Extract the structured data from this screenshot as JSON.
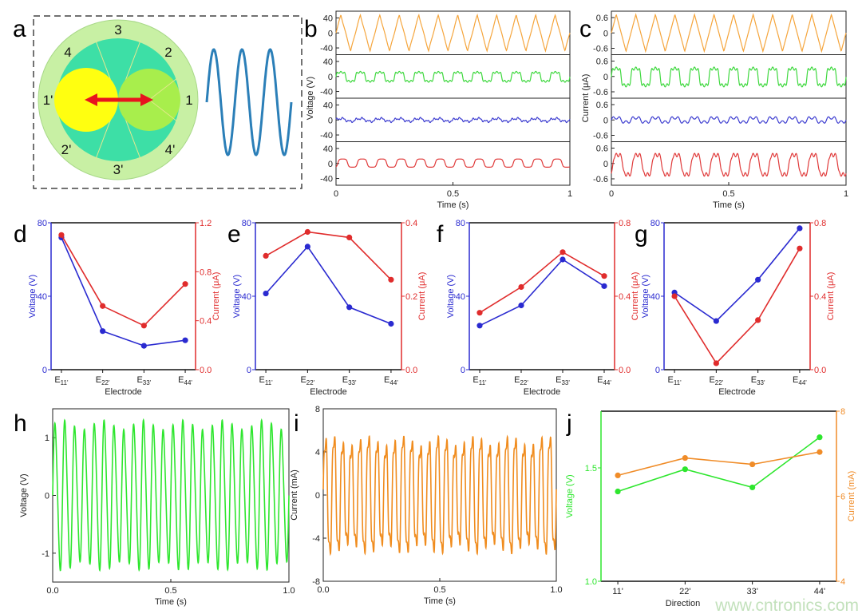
{
  "panel_letters": [
    "a",
    "b",
    "c",
    "d",
    "e",
    "f",
    "g",
    "h",
    "i",
    "j"
  ],
  "panel_a": {
    "electrode_labels": [
      "3",
      "2",
      "4",
      "1",
      "1'",
      "2'",
      "4'",
      "3'"
    ],
    "colors": {
      "outer_ring": "#c8f0a4",
      "inner_disc": "#3ddfa6",
      "left_magnet": "#ffff10",
      "right_magnet": "#a8ee4c",
      "arrow": "#e8141e",
      "waveform": "#2b7fb8"
    }
  },
  "watermark": "www.cntronics.com",
  "chart_data": [
    {
      "id": "b",
      "type": "line",
      "layout": "stacked-4",
      "xlabel": "Time (s)",
      "ylabel": "Voltage (V)",
      "xlim": [
        0,
        1
      ],
      "xtick_values": [
        0,
        0.5,
        1
      ],
      "xtick_labels": [
        "0",
        "0.5",
        "1"
      ],
      "ylim": [
        -58,
        58
      ],
      "ytick_values": [
        40,
        0,
        -40
      ],
      "ytick_labels": [
        "40",
        "0",
        "-40"
      ],
      "series": [
        {
          "color": "#f5a53c",
          "cycles": 12,
          "amplitude": 48
        },
        {
          "color": "#3ed83e",
          "cycles": 12,
          "amplitude": 13
        },
        {
          "color": "#3c3cd0",
          "cycles": 12,
          "amplitude": 6
        },
        {
          "color": "#e03a3a",
          "cycles": 12,
          "amplitude": 12
        }
      ]
    },
    {
      "id": "c",
      "type": "line",
      "layout": "stacked-4",
      "xlabel": "Time (s)",
      "ylabel": "Current (μA)",
      "xlim": [
        0,
        1
      ],
      "xtick_values": [
        0,
        0.5,
        1
      ],
      "xtick_labels": [
        "0",
        "0.5",
        "1"
      ],
      "ylim": [
        -0.85,
        0.85
      ],
      "ytick_values": [
        0.6,
        0,
        -0.6
      ],
      "ytick_labels": [
        "0.6",
        "0",
        "-0.6"
      ],
      "series": [
        {
          "color": "#f5a53c",
          "cycles": 12,
          "amplitude": 0.72
        },
        {
          "color": "#3ed83e",
          "cycles": 12,
          "amplitude": 0.35
        },
        {
          "color": "#3c3cd0",
          "cycles": 12,
          "amplitude": 0.2
        },
        {
          "color": "#e03a3a",
          "cycles": 12,
          "amplitude": 0.4
        }
      ]
    },
    {
      "id": "d",
      "type": "line",
      "xlabel": "Electrode",
      "categories": [
        {
          "base": "E",
          "sub": "11'"
        },
        {
          "base": "E",
          "sub": "22'"
        },
        {
          "base": "E",
          "sub": "33'"
        },
        {
          "base": "E",
          "sub": "44'"
        }
      ],
      "left": {
        "label": "Voltage (V)",
        "color": "#2a2ad0",
        "ylim": [
          0,
          80
        ],
        "tick_values": [
          0,
          40,
          80
        ],
        "tick_labels": [
          "0",
          "40",
          "80"
        ],
        "values": [
          72,
          21,
          13,
          16
        ]
      },
      "right": {
        "label": "Current (μA)",
        "color": "#e02c2c",
        "ylim": [
          0,
          1.2
        ],
        "tick_values": [
          0,
          0.4,
          0.8,
          1.2
        ],
        "tick_labels": [
          "0.0",
          "0.4",
          "0.8",
          "1.2"
        ],
        "values": [
          1.1,
          0.52,
          0.36,
          0.7
        ]
      }
    },
    {
      "id": "e",
      "type": "line",
      "xlabel": "Electrode",
      "categories": [
        {
          "base": "E",
          "sub": "11'"
        },
        {
          "base": "E",
          "sub": "22'"
        },
        {
          "base": "E",
          "sub": "33'"
        },
        {
          "base": "E",
          "sub": "44'"
        }
      ],
      "left": {
        "label": "Voltage (V)",
        "color": "#2a2ad0",
        "ylim": [
          0,
          80
        ],
        "tick_values": [
          0,
          40,
          80
        ],
        "tick_labels": [
          "0",
          "40",
          "80"
        ],
        "values": [
          41.5,
          67,
          34,
          25
        ]
      },
      "right": {
        "label": "Current (μA)",
        "color": "#e02c2c",
        "ylim": [
          0,
          0.4
        ],
        "tick_values": [
          0,
          0.2,
          0.4
        ],
        "tick_labels": [
          "0.0",
          "0.2",
          "0.4"
        ],
        "values": [
          0.31,
          0.375,
          0.36,
          0.245
        ]
      }
    },
    {
      "id": "f",
      "type": "line",
      "xlabel": "Electrode",
      "categories": [
        {
          "base": "E",
          "sub": "11'"
        },
        {
          "base": "E",
          "sub": "22'"
        },
        {
          "base": "E",
          "sub": "33'"
        },
        {
          "base": "E",
          "sub": "44'"
        }
      ],
      "left": {
        "label": "Voltage (V)",
        "color": "#2a2ad0",
        "ylim": [
          0,
          80
        ],
        "tick_values": [
          0,
          40,
          80
        ],
        "tick_labels": [
          "0",
          "40",
          "80"
        ],
        "values": [
          24,
          35,
          60,
          45.5
        ]
      },
      "right": {
        "label": "Current (μA)",
        "color": "#e02c2c",
        "ylim": [
          0,
          0.8
        ],
        "tick_values": [
          0,
          0.4,
          0.8
        ],
        "tick_labels": [
          "0.0",
          "0.4",
          "0.8"
        ],
        "values": [
          0.31,
          0.45,
          0.64,
          0.51
        ]
      }
    },
    {
      "id": "g",
      "type": "line",
      "xlabel": "Electrode",
      "categories": [
        {
          "base": "E",
          "sub": "11'"
        },
        {
          "base": "E",
          "sub": "22'"
        },
        {
          "base": "E",
          "sub": "33'"
        },
        {
          "base": "E",
          "sub": "44'"
        }
      ],
      "left": {
        "label": "Voltage (V)",
        "color": "#2a2ad0",
        "ylim": [
          0,
          80
        ],
        "tick_values": [
          0,
          40,
          80
        ],
        "tick_labels": [
          "0",
          "40",
          "80"
        ],
        "values": [
          42,
          26.5,
          49,
          77
        ]
      },
      "right": {
        "label": "Current (μA)",
        "color": "#e02c2c",
        "ylim": [
          0,
          0.8
        ],
        "tick_values": [
          0,
          0.4,
          0.8
        ],
        "tick_labels": [
          "0.0",
          "0.4",
          "0.8"
        ],
        "values": [
          0.4,
          0.035,
          0.27,
          0.66
        ]
      }
    },
    {
      "id": "h",
      "type": "line",
      "xlabel": "Time (s)",
      "ylabel": "Voltage (V)",
      "xlim": [
        0,
        1
      ],
      "xtick_values": [
        0,
        0.5,
        1
      ],
      "xtick_labels": [
        "0.0",
        "0.5",
        "1.0"
      ],
      "ylim": [
        -1.5,
        1.5
      ],
      "ytick_values": [
        1,
        0,
        -1
      ],
      "ytick_labels": [
        "1",
        "0",
        "-1"
      ],
      "series": [
        {
          "color": "#2ee62e",
          "cycles": 24,
          "amplitude": 1.25
        }
      ]
    },
    {
      "id": "i",
      "type": "line",
      "xlabel": "Time (s)",
      "ylabel": "Current (mA)",
      "xlim": [
        0,
        1
      ],
      "xtick_values": [
        0,
        0.5,
        1
      ],
      "xtick_labels": [
        "0.0",
        "0.5",
        "1.0"
      ],
      "ylim": [
        -8,
        8
      ],
      "ytick_values": [
        8,
        4,
        0,
        -4,
        -8
      ],
      "ytick_labels": [
        "8",
        "4",
        "0",
        "-4",
        "-8"
      ],
      "series": [
        {
          "color": "#f08c1e",
          "cycles": 27,
          "amplitude": 5.5
        }
      ]
    },
    {
      "id": "j",
      "type": "line",
      "xlabel": "Direction",
      "categories": [
        {
          "base": "11'",
          "sub": ""
        },
        {
          "base": "22'",
          "sub": ""
        },
        {
          "base": "33'",
          "sub": ""
        },
        {
          "base": "44'",
          "sub": ""
        }
      ],
      "left": {
        "label": "Voltage (V)",
        "color": "#2ee62e",
        "ylim": [
          1.0,
          1.75
        ],
        "tick_values": [
          1.0,
          1.5
        ],
        "tick_labels": [
          "1.0",
          "1.5"
        ],
        "values": [
          1.396,
          1.494,
          1.414,
          1.635
        ]
      },
      "right": {
        "label": "Current (mA)",
        "color": "#f08c28",
        "ylim": [
          4,
          8
        ],
        "tick_values": [
          4,
          6,
          8
        ],
        "tick_labels": [
          "4",
          "6",
          "8"
        ],
        "values": [
          6.49,
          6.9,
          6.75,
          7.04
        ]
      }
    }
  ]
}
